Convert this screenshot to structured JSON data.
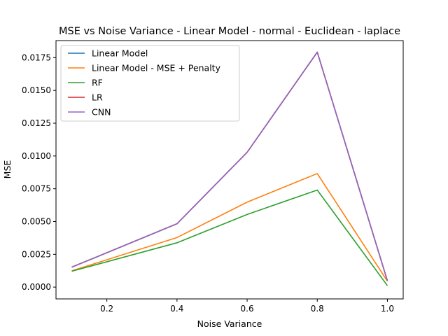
{
  "chart_data": {
    "type": "line",
    "title": "MSE vs Noise Variance - Linear Model - normal - Euclidean - laplace",
    "xlabel": "Noise Variance",
    "ylabel": "MSE",
    "x": [
      0.1,
      0.4,
      0.6,
      0.8,
      1.0
    ],
    "xlim": [
      0.055,
      1.045
    ],
    "ylim": [
      -0.0009,
      0.0188
    ],
    "x_ticks": [
      0.2,
      0.4,
      0.6,
      0.8,
      1.0
    ],
    "x_tick_labels": [
      "0.2",
      "0.4",
      "0.6",
      "0.8",
      "1.0"
    ],
    "y_ticks": [
      0,
      0.0025,
      0.005,
      0.0075,
      0.01,
      0.0125,
      0.015,
      0.0175
    ],
    "y_tick_labels": [
      "0.0000",
      "0.0025",
      "0.0050",
      "0.0075",
      "0.0100",
      "0.0125",
      "0.0150",
      "0.0175"
    ],
    "grid": false,
    "legend_position": "top-left",
    "series": [
      {
        "name": "Linear Model",
        "color": "#1f77b4",
        "values": [
          0.00152,
          0.00483,
          0.01028,
          0.01792,
          0.00048
        ]
      },
      {
        "name": "Linear Model - MSE + Penalty",
        "color": "#ff7f0e",
        "values": [
          0.00124,
          0.00378,
          0.00648,
          0.00866,
          0.00045
        ]
      },
      {
        "name": "RF",
        "color": "#2ca02c",
        "values": [
          0.00121,
          0.00338,
          0.00554,
          0.0074,
          0.00011
        ]
      },
      {
        "name": "LR",
        "color": "#d62728",
        "values": [
          0.00152,
          0.00483,
          0.01028,
          0.01792,
          0.00048
        ]
      },
      {
        "name": "CNN",
        "color": "#9467bd",
        "values": [
          0.00152,
          0.00483,
          0.01028,
          0.01792,
          0.00048
        ]
      }
    ]
  }
}
